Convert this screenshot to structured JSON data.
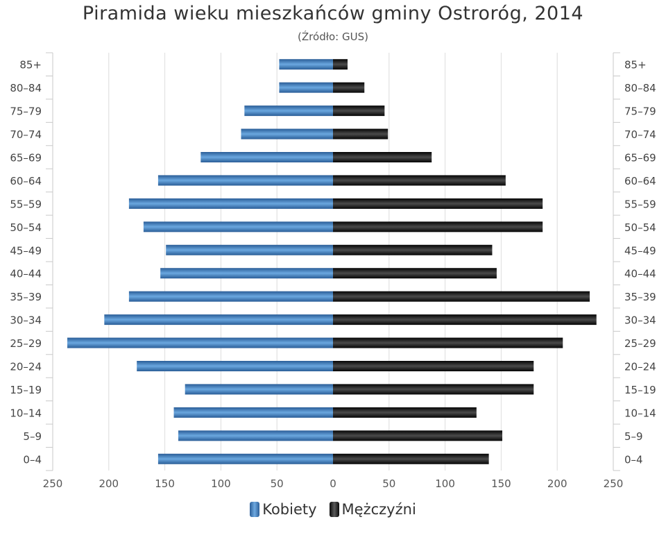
{
  "chart_data": {
    "type": "bar",
    "title": "Piramida wieku mieszkańców gminy Ostroróg, 2014",
    "subtitle": "(Źródło: GUS)",
    "categories": [
      "85+",
      "80–84",
      "75–79",
      "70–74",
      "65–69",
      "60–64",
      "55–59",
      "50–54",
      "45–49",
      "40–44",
      "35–39",
      "30–34",
      "25–29",
      "20–24",
      "15–19",
      "10–14",
      "5–9",
      "0–4"
    ],
    "series": [
      {
        "name": "Kobiety",
        "color": "#3d7cc1",
        "values": [
          48,
          48,
          79,
          82,
          118,
          156,
          182,
          169,
          149,
          154,
          182,
          204,
          237,
          175,
          132,
          142,
          138,
          156
        ]
      },
      {
        "name": "Mężczyźni",
        "color": "#1a1a1a",
        "values": [
          13,
          28,
          46,
          49,
          88,
          154,
          187,
          187,
          142,
          146,
          229,
          235,
          205,
          179,
          179,
          128,
          151,
          139
        ]
      }
    ],
    "xlim": [
      -250,
      250
    ],
    "xticks": [
      "250",
      "200",
      "150",
      "100",
      "50",
      "0",
      "50",
      "100",
      "150",
      "200",
      "250"
    ],
    "grid": true,
    "orientation": "horizontal",
    "legend_position": "bottom"
  },
  "legend": {
    "women_label": "Kobiety",
    "men_label": "Mężczyźni"
  }
}
